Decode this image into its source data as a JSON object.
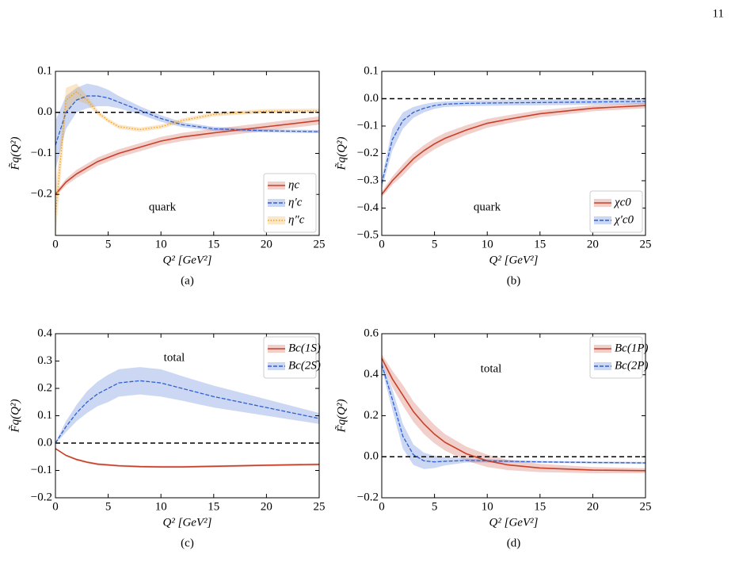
{
  "page_number": "11",
  "chart_data": [
    {
      "type": "line",
      "panel": "(a)",
      "xlabel": "Q² [GeV²]",
      "ylabel": "F̃q(Q²)",
      "annotation": "quark",
      "legend": "lower right",
      "hline": 0,
      "x": [
        0,
        1,
        2,
        3,
        4,
        5,
        6,
        8,
        10,
        12,
        15,
        20,
        25
      ],
      "xlim": [
        0,
        25
      ],
      "xticks": [
        0,
        5,
        10,
        15,
        20,
        25
      ],
      "ylim": [
        -0.3,
        0.1
      ],
      "yticks": [
        0.1,
        {
          "value": 0,
          "label": "0.0"
        },
        {
          "value": -0.1,
          "label": "−0.1"
        },
        {
          "value": -0.2,
          "label": "−0.2"
        }
      ],
      "series": [
        {
          "name": "ηc",
          "color": "#c8402a",
          "dash": "solid",
          "values": [
            -0.2,
            -0.17,
            -0.15,
            -0.135,
            -0.12,
            -0.11,
            -0.1,
            -0.085,
            -0.07,
            -0.06,
            -0.05,
            -0.035,
            -0.02
          ],
          "band": [
            0.005,
            0.008,
            0.01,
            0.01,
            0.01,
            0.01,
            0.01,
            0.01,
            0.01,
            0.01,
            0.01,
            0.01,
            0.01
          ]
        },
        {
          "name": "η′c",
          "color": "#2f5fd0",
          "dash": "dashed",
          "values": [
            -0.08,
            0,
            0.03,
            0.04,
            0.04,
            0.035,
            0.025,
            0.005,
            -0.015,
            -0.03,
            -0.04,
            -0.045,
            -0.047
          ],
          "band": [
            0.06,
            0.04,
            0.03,
            0.03,
            0.025,
            0.02,
            0.015,
            0.01,
            0.008,
            0.006,
            0.005,
            0.004,
            0.004
          ]
        },
        {
          "name": "η″c",
          "color": "#f0a020",
          "dash": "dotted",
          "values": [
            -0.25,
            0.03,
            0.05,
            0.03,
            0,
            -0.02,
            -0.035,
            -0.042,
            -0.035,
            -0.02,
            -0.005,
            0.003,
            0.004
          ],
          "band": [
            0.06,
            0.03,
            0.02,
            0.01,
            0.006,
            0.005,
            0.005,
            0.005,
            0.005,
            0.005,
            0.005,
            0.005,
            0.005
          ]
        }
      ]
    },
    {
      "type": "line",
      "panel": "(b)",
      "xlabel": "Q² [GeV²]",
      "ylabel": "F̃q(Q²)",
      "annotation": "quark",
      "legend": "lower right",
      "hline": 0,
      "x": [
        0,
        1,
        2,
        3,
        4,
        5,
        6,
        8,
        10,
        12,
        15,
        20,
        25
      ],
      "xlim": [
        0,
        25
      ],
      "xticks": [
        0,
        5,
        10,
        15,
        20,
        25
      ],
      "ylim": [
        -0.5,
        0.1
      ],
      "yticks": [
        0.1,
        {
          "value": 0,
          "label": "0.0"
        },
        {
          "value": -0.1,
          "label": "−0.1"
        },
        {
          "value": -0.2,
          "label": "−0.2"
        },
        {
          "value": -0.3,
          "label": "−0.3"
        },
        {
          "value": -0.4,
          "label": "−0.4"
        },
        {
          "value": -0.5,
          "label": "−0.5"
        }
      ],
      "series": [
        {
          "name": "χc0",
          "color": "#c8402a",
          "dash": "solid",
          "values": [
            -0.35,
            -0.3,
            -0.26,
            -0.22,
            -0.19,
            -0.165,
            -0.145,
            -0.115,
            -0.09,
            -0.075,
            -0.055,
            -0.035,
            -0.025
          ],
          "band": [
            0.01,
            0.015,
            0.02,
            0.02,
            0.02,
            0.02,
            0.02,
            0.018,
            0.016,
            0.015,
            0.013,
            0.011,
            0.01
          ]
        },
        {
          "name": "χ′c0",
          "color": "#2f5fd0",
          "dash": "dashed",
          "values": [
            -0.31,
            -0.15,
            -0.08,
            -0.05,
            -0.035,
            -0.025,
            -0.02,
            -0.017,
            -0.016,
            -0.015,
            -0.014,
            -0.012,
            -0.01
          ],
          "band": [
            0.02,
            0.04,
            0.03,
            0.02,
            0.015,
            0.012,
            0.01,
            0.01,
            0.01,
            0.01,
            0.01,
            0.01,
            0.01
          ]
        }
      ]
    },
    {
      "type": "line",
      "panel": "(c)",
      "xlabel": "Q² [GeV²]",
      "ylabel": "F̃q(Q²)",
      "annotation": "total",
      "legend": "upper right",
      "hline": 0,
      "x": [
        0,
        1,
        2,
        3,
        4,
        5,
        6,
        8,
        10,
        12,
        15,
        20,
        25
      ],
      "xlim": [
        0,
        25
      ],
      "xticks": [
        0,
        5,
        10,
        15,
        20,
        25
      ],
      "ylim": [
        -0.2,
        0.4
      ],
      "yticks": [
        0.4,
        0.3,
        0.2,
        0.1,
        {
          "value": 0,
          "label": "0.0"
        },
        {
          "value": -0.1,
          "label": "−0.1"
        },
        {
          "value": -0.2,
          "label": "−0.2"
        }
      ],
      "series": [
        {
          "name": "Bc(1S)",
          "color": "#c8402a",
          "dash": "solid",
          "values": [
            -0.02,
            -0.045,
            -0.06,
            -0.07,
            -0.077,
            -0.08,
            -0.083,
            -0.086,
            -0.087,
            -0.087,
            -0.085,
            -0.081,
            -0.078
          ],
          "band": [
            0.002,
            0.003,
            0.004,
            0.004,
            0.004,
            0.004,
            0.004,
            0.004,
            0.004,
            0.004,
            0.004,
            0.004,
            0.004
          ]
        },
        {
          "name": "Bc(2S)",
          "color": "#2f5fd0",
          "dash": "dashed",
          "values": [
            0,
            0.06,
            0.11,
            0.15,
            0.18,
            0.2,
            0.22,
            0.228,
            0.22,
            0.2,
            0.17,
            0.13,
            0.09
          ],
          "band": [
            0.003,
            0.02,
            0.03,
            0.04,
            0.045,
            0.05,
            0.05,
            0.05,
            0.05,
            0.045,
            0.04,
            0.03,
            0.02
          ]
        }
      ]
    },
    {
      "type": "line",
      "panel": "(d)",
      "xlabel": "Q² [GeV²]",
      "ylabel": "F̃q(Q²)",
      "annotation": "total",
      "legend": "upper right",
      "hline": 0,
      "x": [
        0,
        1,
        2,
        3,
        4,
        5,
        6,
        8,
        10,
        12,
        15,
        20,
        25
      ],
      "xlim": [
        0,
        25
      ],
      "xticks": [
        0,
        5,
        10,
        15,
        20,
        25
      ],
      "ylim": [
        -0.2,
        0.6
      ],
      "yticks": [
        0.6,
        0.4,
        0.2,
        {
          "value": 0,
          "label": "0.0"
        },
        {
          "value": -0.2,
          "label": "−0.2"
        }
      ],
      "series": [
        {
          "name": "Bc(1P)",
          "color": "#c8402a",
          "dash": "solid",
          "values": [
            0.48,
            0.38,
            0.3,
            0.22,
            0.16,
            0.11,
            0.07,
            0.015,
            -0.02,
            -0.04,
            -0.055,
            -0.065,
            -0.068
          ],
          "band": [
            0.02,
            0.04,
            0.05,
            0.05,
            0.05,
            0.045,
            0.04,
            0.035,
            0.03,
            0.025,
            0.02,
            0.015,
            0.012
          ]
        },
        {
          "name": "Bc(2P)",
          "color": "#2f5fd0",
          "dash": "dashed",
          "values": [
            0.45,
            0.28,
            0.1,
            0.01,
            -0.02,
            -0.025,
            -0.022,
            -0.018,
            -0.02,
            -0.022,
            -0.025,
            -0.028,
            -0.03
          ],
          "band": [
            0.02,
            0.05,
            0.06,
            0.05,
            0.04,
            0.03,
            0.02,
            0.01,
            0.008,
            0.006,
            0.005,
            0.005,
            0.005
          ]
        }
      ]
    }
  ]
}
